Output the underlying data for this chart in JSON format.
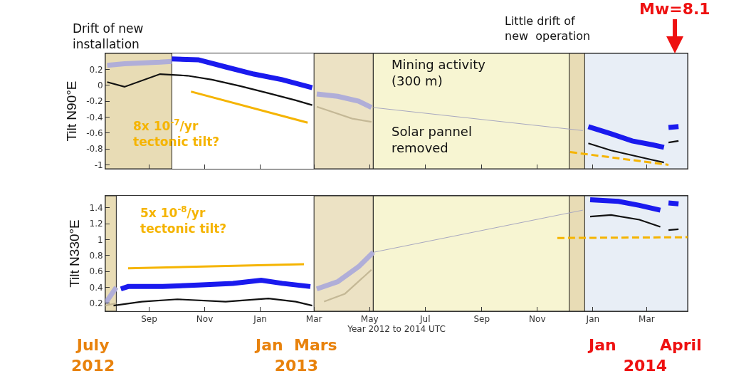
{
  "chart_data": [
    {
      "type": "line",
      "ylabel": "Tilt N90°E",
      "xlim": [
        "2012-07-15",
        "2014-04-15"
      ],
      "ylim": [
        -1.05,
        0.4
      ],
      "xticks": [
        {
          "value": "2012-09-01",
          "label": null
        },
        {
          "value": "2012-11-01",
          "label": null
        },
        {
          "value": "2013-01-01",
          "label": null
        },
        {
          "value": "2013-03-01",
          "label": null
        },
        {
          "value": "2013-05-01",
          "label": null
        },
        {
          "value": "2013-07-01",
          "label": null
        },
        {
          "value": "2013-09-01",
          "label": null
        },
        {
          "value": "2013-11-01",
          "label": null
        },
        {
          "value": "2014-01-01",
          "label": null
        },
        {
          "value": "2014-03-01",
          "label": null
        }
      ],
      "yticks": [
        -1,
        -0.8,
        -0.6,
        -0.4,
        -0.2,
        0,
        0.2
      ],
      "tick_labels": "y",
      "grid": false,
      "marker": "none",
      "bands": [
        {
          "axis": "x",
          "from": "2012-07-15",
          "to": "2012-09-26",
          "color": "#e8dcb5"
        },
        {
          "axis": "x",
          "from": "2013-12-11",
          "to": "2014-04-15",
          "color": "#e8eef6"
        },
        {
          "axis": "x",
          "from": "2013-03-01",
          "to": "2013-05-05",
          "color": "#ece2c4"
        },
        {
          "axis": "x",
          "from": "2013-05-05",
          "to": "2013-12-06",
          "color": "#f7f5d2"
        },
        {
          "axis": "x",
          "from": "2013-12-06",
          "to": "2013-12-23",
          "color": "#e8dcb5"
        }
      ],
      "series": [
        {
          "color": "#b0aed8",
          "x": [
            "2012-07-17",
            "2012-08-05",
            "2012-09-13",
            "2012-09-26",
            "2012-09-27",
            "2013-03-04",
            "2013-03-27",
            "2013-04-19",
            "2013-05-03"
          ],
          "values": [
            0.25,
            0.27,
            0.29,
            0.3,
            null,
            -0.11,
            -0.14,
            -0.2,
            -0.28
          ]
        },
        {
          "color": "#a8a8c0",
          "x": [
            "2013-05-05",
            "2013-12-21"
          ],
          "values": [
            -0.28,
            -0.57
          ]
        },
        {
          "color": "#1a1aee",
          "x": [
            "2012-09-26",
            "2012-10-25",
            "2012-11-24",
            "2012-12-25",
            "2013-01-25",
            "2013-02-27",
            "2013-03-01",
            "2013-12-27",
            "2014-01-21",
            "2014-02-13",
            "2014-03-08",
            "2014-03-20",
            "2014-03-22",
            "2014-03-25",
            "2014-04-05"
          ],
          "values": [
            0.33,
            0.32,
            0.23,
            0.14,
            0.07,
            -0.03,
            null,
            -0.52,
            -0.61,
            -0.7,
            -0.75,
            -0.78,
            null,
            -0.53,
            -0.52
          ]
        },
        {
          "color": "#c4b896",
          "x": [
            "2013-03-04",
            "2013-03-12",
            "2013-04-12",
            "2013-05-03"
          ],
          "values": [
            -0.27,
            -0.3,
            -0.42,
            -0.46
          ]
        },
        {
          "color": "#111111",
          "x": [
            "2012-07-17",
            "2012-08-05",
            "2012-09-13",
            "2012-10-13",
            "2012-11-09",
            "2012-12-10",
            "2013-01-10",
            "2013-02-09",
            "2013-02-27",
            "2013-03-01",
            "2013-12-27",
            "2014-01-21",
            "2014-02-13",
            "2014-03-08",
            "2014-03-20",
            "2014-03-22",
            "2014-03-25",
            "2014-04-05"
          ],
          "values": [
            0.04,
            -0.02,
            0.14,
            0.12,
            0.07,
            -0.01,
            -0.1,
            -0.19,
            -0.25,
            null,
            -0.73,
            -0.82,
            -0.88,
            -0.94,
            -0.97,
            null,
            -0.72,
            -0.7
          ]
        },
        {
          "color": "#f5b400",
          "x": [
            "2012-10-17",
            "2013-02-22"
          ],
          "values": [
            -0.08,
            -0.47
          ],
          "line_style": "solid"
        },
        {
          "color": "#f5b400",
          "x": [
            "2013-12-07",
            "2014-03-25"
          ],
          "values": [
            -0.84,
            -1.0
          ],
          "line_style": "dashed"
        }
      ],
      "annotations": [
        "Drift of new\ninstallation",
        "Little drift of\nnew  operation",
        {
          "text": "Mw=8.1",
          "x": "2014-04-01",
          "y": 0.4
        },
        "Mining activity\n(300 m)",
        "Solar pannel\nremoved",
        "8x 10$^{-7}$/yr\ntectonic tilt?"
      ]
    },
    {
      "type": "line",
      "ylabel": "Tilt N330°E",
      "xlabel": "Year 2012 to 2014 UTC",
      "xlim": [
        "2012-07-15",
        "2014-04-15"
      ],
      "ylim": [
        0.1,
        1.55
      ],
      "xticks": [
        {
          "value": "2012-09-01",
          "label": "Sep"
        },
        {
          "value": "2012-11-01",
          "label": "Nov"
        },
        {
          "value": "2013-01-01",
          "label": "Jan"
        },
        {
          "value": "2013-03-01",
          "label": "Mar"
        },
        {
          "value": "2013-05-01",
          "label": "May"
        },
        {
          "value": "2013-07-01",
          "label": "Jul"
        },
        {
          "value": "2013-09-01",
          "label": "Sep"
        },
        {
          "value": "2013-11-01",
          "label": "Nov"
        },
        {
          "value": "2014-01-01",
          "label": "Jan"
        },
        {
          "value": "2014-03-01",
          "label": "Mar"
        }
      ],
      "yticks": [
        0.2,
        0.4,
        0.6,
        0.8,
        1,
        1.2,
        1.4
      ],
      "grid": false,
      "marker": "none",
      "bands": [
        {
          "axis": "x",
          "from": "2012-07-15",
          "to": "2012-07-27",
          "color": "#e8dcb5"
        },
        {
          "axis": "x",
          "from": "2013-12-11",
          "to": "2014-04-15",
          "color": "#e8eef6"
        },
        {
          "axis": "x",
          "from": "2013-03-01",
          "to": "2013-05-05",
          "color": "#ece2c4"
        },
        {
          "axis": "x",
          "from": "2013-05-05",
          "to": "2013-12-06",
          "color": "#f7f5d2"
        },
        {
          "axis": "x",
          "from": "2013-12-06",
          "to": "2013-12-23",
          "color": "#e8dcb5"
        }
      ],
      "series": [
        {
          "color": "#b0aed8",
          "x": [
            "2012-07-15",
            "2012-07-27",
            "2012-07-28",
            "2013-03-04",
            "2013-03-27",
            "2013-04-19",
            "2013-05-05"
          ],
          "values": [
            0.2,
            0.4,
            null,
            0.38,
            0.47,
            0.66,
            0.84
          ]
        },
        {
          "color": "#a8a8c0",
          "x": [
            "2013-05-05",
            "2013-12-21"
          ],
          "values": [
            0.84,
            1.37
          ]
        },
        {
          "color": "#1a1aee",
          "x": [
            "2012-08-01",
            "2012-08-09",
            "2012-09-16",
            "2012-10-25",
            "2012-12-02",
            "2013-01-02",
            "2013-01-25",
            "2013-02-25",
            "2013-03-01",
            "2013-12-29",
            "2014-01-29",
            "2014-02-21",
            "2014-03-16",
            "2014-03-22",
            "2014-03-25",
            "2014-04-05"
          ],
          "values": [
            0.38,
            0.41,
            0.41,
            0.43,
            0.45,
            0.49,
            0.45,
            0.41,
            null,
            1.5,
            1.48,
            1.43,
            1.37,
            null,
            1.46,
            1.45
          ]
        },
        {
          "color": "#c4b896",
          "x": [
            "2012-07-15",
            "2012-07-27",
            "2012-07-28",
            "2013-03-12",
            "2013-04-04",
            "2013-05-03"
          ],
          "values": [
            0.17,
            0.2,
            null,
            0.22,
            0.32,
            0.62
          ]
        },
        {
          "color": "#111111",
          "x": [
            "2012-07-24",
            "2012-08-24",
            "2012-10-02",
            "2012-11-24",
            "2013-01-10",
            "2013-02-09",
            "2013-02-27",
            "2013-03-01",
            "2013-12-29",
            "2014-01-21",
            "2014-02-21",
            "2014-03-16",
            "2014-03-22",
            "2014-03-25",
            "2014-04-05"
          ],
          "values": [
            0.17,
            0.22,
            0.25,
            0.22,
            0.26,
            0.22,
            0.17,
            null,
            1.29,
            1.31,
            1.25,
            1.16,
            null,
            1.12,
            1.13
          ]
        },
        {
          "color": "#f5b400",
          "x": [
            "2012-08-09",
            "2013-02-18"
          ],
          "values": [
            0.64,
            0.69
          ],
          "line_style": "solid"
        },
        {
          "color": "#f5b400",
          "x": [
            "2013-11-23",
            "2014-04-15"
          ],
          "values": [
            1.02,
            1.03
          ],
          "line_style": "dashed"
        }
      ],
      "annotations": [
        "5x 10$^{-8}$/yr\ntectonic tilt?",
        "July\n2012",
        "Jan  Mars\n2013",
        "Jan        April\n2014"
      ]
    }
  ]
}
